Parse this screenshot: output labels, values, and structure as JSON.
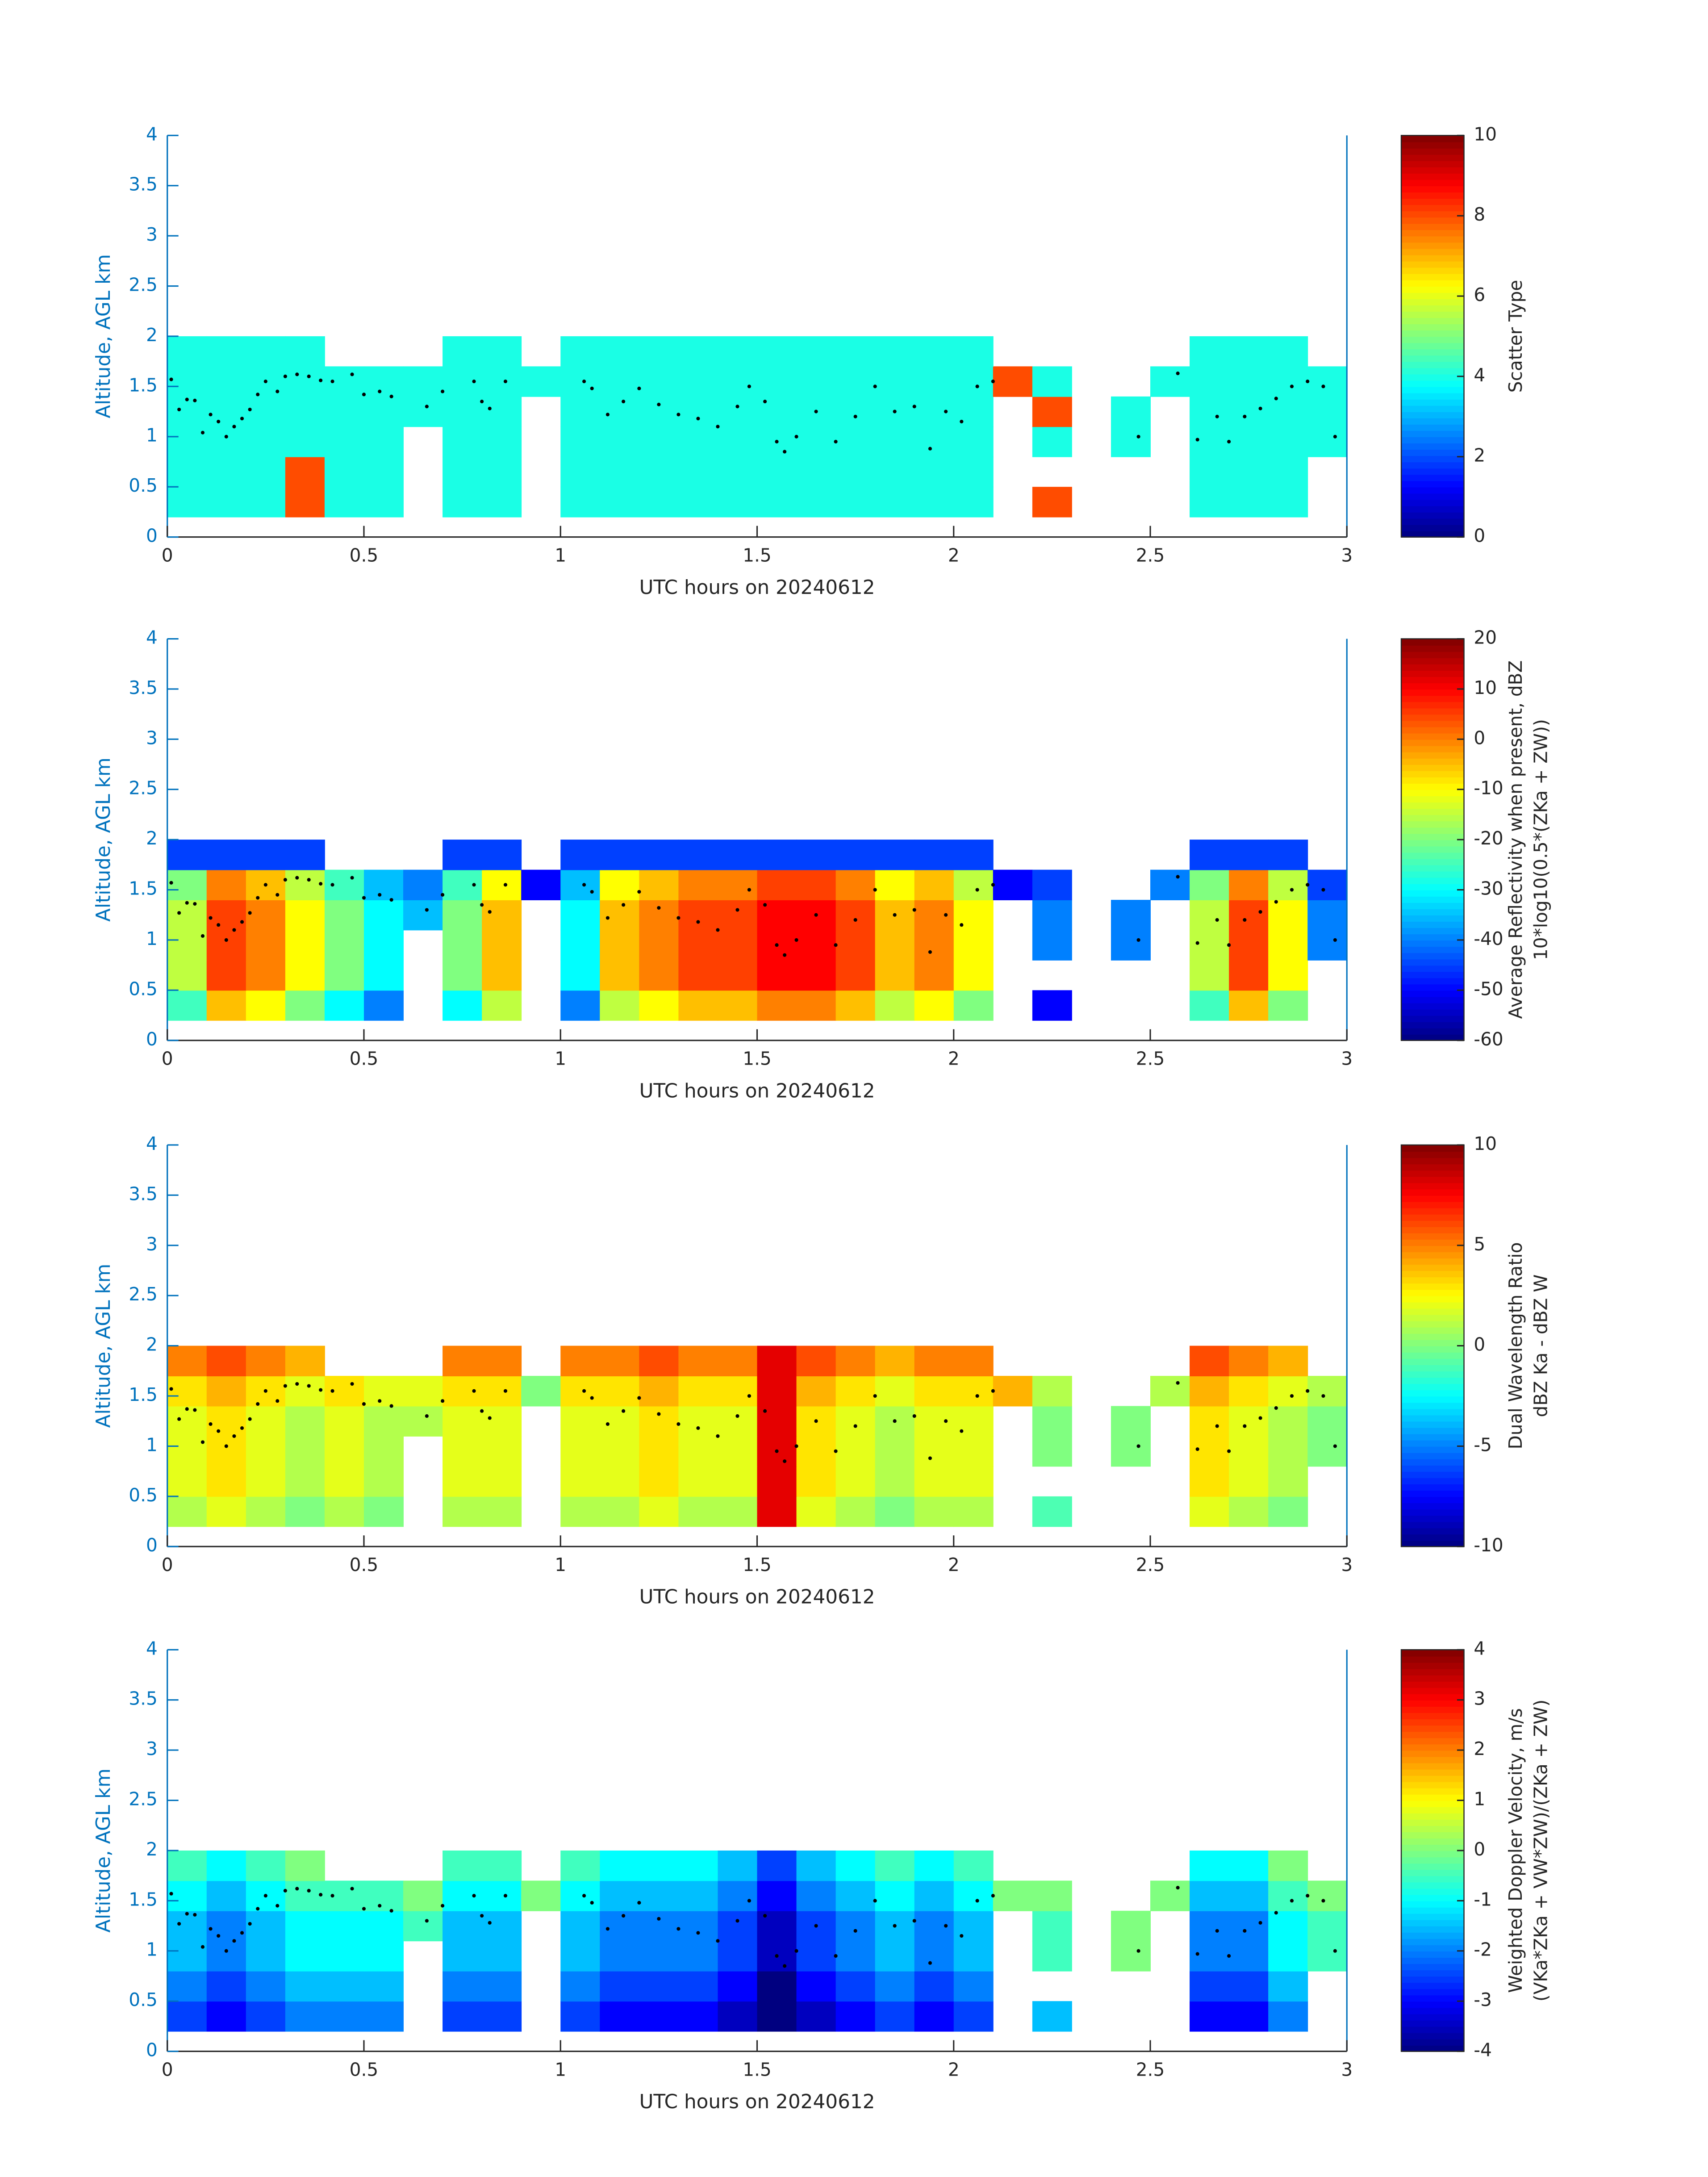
{
  "chart_data": [
    {
      "type": "heatmap",
      "xlabel": "UTC hours on 20240612",
      "ylabel": "Altitude, AGL km",
      "colorbar_label": [
        "Scatter Type"
      ],
      "xlim": [
        0,
        3
      ],
      "xticks": [
        0,
        0.5,
        1,
        1.5,
        2,
        2.5,
        3
      ],
      "ylim": [
        0,
        4
      ],
      "yticks": [
        0,
        0.5,
        1,
        1.5,
        2,
        2.5,
        3,
        3.5,
        4
      ],
      "colormap": "jet",
      "clim": [
        0,
        10
      ],
      "cticks": [
        0,
        2,
        4,
        6,
        8,
        10
      ],
      "xbins": [
        0,
        0.1,
        0.2,
        0.3,
        0.4,
        0.5,
        0.6,
        0.7,
        0.8,
        0.9,
        1,
        1.1,
        1.2,
        1.3,
        1.4,
        1.5,
        1.6,
        1.7,
        1.8,
        1.9,
        2,
        2.1,
        2.2,
        2.3,
        2.4,
        2.5,
        2.6,
        2.7,
        2.8,
        2.9,
        3
      ],
      "ybins": [
        0.2,
        0.5,
        0.8,
        1.1,
        1.4,
        1.7,
        2.0
      ],
      "z": [
        [
          4,
          4,
          4,
          8,
          4,
          4,
          null,
          4,
          4,
          null,
          4,
          4,
          4,
          4,
          4,
          4,
          4,
          4,
          4,
          4,
          4,
          null,
          8,
          null,
          null,
          null,
          4,
          4,
          4,
          null
        ],
        [
          4,
          4,
          4,
          8,
          4,
          4,
          null,
          4,
          4,
          null,
          4,
          4,
          4,
          4,
          4,
          4,
          4,
          4,
          4,
          4,
          4,
          null,
          null,
          null,
          null,
          null,
          4,
          4,
          4,
          null
        ],
        [
          4,
          4,
          4,
          4,
          4,
          4,
          null,
          4,
          4,
          null,
          4,
          4,
          4,
          4,
          4,
          4,
          4,
          4,
          4,
          4,
          4,
          null,
          4,
          null,
          4,
          null,
          4,
          4,
          4,
          4
        ],
        [
          4,
          4,
          4,
          4,
          4,
          4,
          4,
          4,
          4,
          null,
          4,
          4,
          4,
          4,
          4,
          4,
          4,
          4,
          4,
          4,
          4,
          null,
          8,
          null,
          4,
          null,
          4,
          4,
          4,
          4
        ],
        [
          4,
          4,
          4,
          4,
          4,
          4,
          4,
          4,
          4,
          4,
          4,
          4,
          4,
          4,
          4,
          4,
          4,
          4,
          4,
          4,
          4,
          8,
          4,
          null,
          null,
          4,
          4,
          4,
          4,
          4
        ],
        [
          4,
          4,
          4,
          4,
          null,
          null,
          null,
          4,
          4,
          null,
          4,
          4,
          4,
          4,
          4,
          4,
          4,
          4,
          4,
          4,
          4,
          null,
          null,
          null,
          null,
          null,
          4,
          4,
          4,
          null
        ]
      ],
      "dots": {
        "x": [
          0.01,
          0.03,
          0.05,
          0.07,
          0.09,
          0.11,
          0.13,
          0.15,
          0.17,
          0.19,
          0.21,
          0.23,
          0.25,
          0.28,
          0.3,
          0.33,
          0.36,
          0.39,
          0.42,
          0.47,
          0.5,
          0.54,
          0.57,
          0.66,
          0.7,
          0.78,
          0.8,
          0.82,
          0.86,
          1.06,
          1.08,
          1.12,
          1.16,
          1.2,
          1.25,
          1.3,
          1.35,
          1.4,
          1.45,
          1.48,
          1.52,
          1.55,
          1.57,
          1.6,
          1.65,
          1.7,
          1.75,
          1.8,
          1.85,
          1.9,
          1.94,
          1.98,
          2.02,
          2.06,
          2.1,
          2.47,
          2.57,
          2.62,
          2.67,
          2.7,
          2.74,
          2.78,
          2.82,
          2.86,
          2.9,
          2.94,
          2.97
        ],
        "y": [
          1.57,
          1.27,
          1.37,
          1.36,
          1.04,
          1.22,
          1.15,
          1.0,
          1.1,
          1.18,
          1.27,
          1.42,
          1.55,
          1.45,
          1.6,
          1.62,
          1.6,
          1.56,
          1.55,
          1.62,
          1.42,
          1.45,
          1.4,
          1.3,
          1.45,
          1.55,
          1.35,
          1.28,
          1.55,
          1.55,
          1.48,
          1.22,
          1.35,
          1.48,
          1.32,
          1.22,
          1.18,
          1.1,
          1.3,
          1.5,
          1.35,
          0.95,
          0.85,
          1.0,
          1.25,
          0.95,
          1.2,
          1.5,
          1.25,
          1.3,
          0.88,
          1.25,
          1.15,
          1.5,
          1.55,
          1.0,
          1.63,
          0.97,
          1.2,
          0.95,
          1.2,
          1.28,
          1.38,
          1.5,
          1.55,
          1.5,
          1.0
        ]
      }
    },
    {
      "type": "heatmap",
      "xlabel": "UTC hours on 20240612",
      "ylabel": "Altitude, AGL km",
      "colorbar_label": [
        "Average Reflectivity when present, dBZ",
        "10*log10(0.5*(ZKa + ZW))"
      ],
      "xlim": [
        0,
        3
      ],
      "xticks": [
        0,
        0.5,
        1,
        1.5,
        2,
        2.5,
        3
      ],
      "ylim": [
        0,
        4
      ],
      "yticks": [
        0,
        0.5,
        1,
        1.5,
        2,
        2.5,
        3,
        3.5,
        4
      ],
      "colormap": "jet",
      "clim": [
        -60,
        20
      ],
      "cticks": [
        -60,
        -50,
        -40,
        -30,
        -20,
        -10,
        0,
        10,
        20
      ],
      "xbins": [
        0,
        0.1,
        0.2,
        0.3,
        0.4,
        0.5,
        0.6,
        0.7,
        0.8,
        0.9,
        1,
        1.1,
        1.2,
        1.3,
        1.4,
        1.5,
        1.6,
        1.7,
        1.8,
        1.9,
        2,
        2.1,
        2.2,
        2.3,
        2.4,
        2.5,
        2.6,
        2.7,
        2.8,
        2.9,
        3
      ],
      "ybins": [
        0.2,
        0.5,
        0.8,
        1.1,
        1.4,
        1.7,
        2.0
      ],
      "z": [
        [
          -25,
          -5,
          -10,
          -20,
          -30,
          -40,
          null,
          -30,
          -15,
          null,
          -40,
          -15,
          -10,
          -5,
          -5,
          0,
          0,
          -5,
          -15,
          -10,
          -20,
          null,
          -50,
          null,
          null,
          null,
          -25,
          -5,
          -20,
          null
        ],
        [
          -15,
          5,
          0,
          -10,
          -20,
          -30,
          null,
          -20,
          -5,
          null,
          -30,
          -5,
          0,
          5,
          5,
          10,
          10,
          5,
          -5,
          0,
          -10,
          null,
          null,
          null,
          null,
          null,
          -15,
          5,
          -10,
          null
        ],
        [
          -15,
          5,
          0,
          -10,
          -20,
          -30,
          null,
          -20,
          -5,
          null,
          -30,
          -5,
          0,
          5,
          5,
          10,
          10,
          5,
          -5,
          0,
          -10,
          null,
          -40,
          null,
          -40,
          null,
          -15,
          5,
          -10,
          -40
        ],
        [
          -15,
          5,
          0,
          -10,
          -20,
          -30,
          -35,
          -20,
          -5,
          null,
          -30,
          -5,
          0,
          5,
          5,
          10,
          10,
          5,
          -5,
          0,
          -10,
          null,
          -40,
          null,
          -40,
          null,
          -15,
          5,
          -10,
          -40
        ],
        [
          -20,
          0,
          -5,
          -15,
          -25,
          -35,
          -40,
          -25,
          -10,
          -50,
          -35,
          -10,
          -5,
          0,
          0,
          5,
          5,
          0,
          -10,
          -5,
          -15,
          -50,
          -45,
          null,
          null,
          -40,
          -20,
          0,
          -15,
          -45
        ],
        [
          -45,
          -45,
          -45,
          -45,
          null,
          null,
          null,
          -45,
          -45,
          null,
          -45,
          -45,
          -45,
          -45,
          -45,
          -45,
          -45,
          -45,
          -45,
          -45,
          -45,
          null,
          null,
          null,
          null,
          null,
          -45,
          -45,
          -45,
          null
        ]
      ]
    },
    {
      "type": "heatmap",
      "xlabel": "UTC hours on 20240612",
      "ylabel": "Altitude, AGL km",
      "colorbar_label": [
        "Dual Wavelength Ratio",
        "dBZ Ka - dBZ W"
      ],
      "xlim": [
        0,
        3
      ],
      "xticks": [
        0,
        0.5,
        1,
        1.5,
        2,
        2.5,
        3
      ],
      "ylim": [
        0,
        4
      ],
      "yticks": [
        0,
        0.5,
        1,
        1.5,
        2,
        2.5,
        3,
        3.5,
        4
      ],
      "colormap": "jet",
      "clim": [
        -10,
        10
      ],
      "cticks": [
        -10,
        -5,
        0,
        5,
        10
      ],
      "xbins": [
        0,
        0.1,
        0.2,
        0.3,
        0.4,
        0.5,
        0.6,
        0.7,
        0.8,
        0.9,
        1,
        1.1,
        1.2,
        1.3,
        1.4,
        1.5,
        1.6,
        1.7,
        1.8,
        1.9,
        2,
        2.1,
        2.2,
        2.3,
        2.4,
        2.5,
        2.6,
        2.7,
        2.8,
        2.9,
        3
      ],
      "ybins": [
        0.2,
        0.5,
        0.8,
        1.1,
        1.4,
        1.7,
        2.0
      ],
      "z": [
        [
          1,
          2,
          1,
          0,
          1,
          0,
          null,
          1,
          1,
          null,
          1,
          1,
          2,
          1,
          1,
          8,
          2,
          1,
          0,
          1,
          1,
          null,
          -1,
          null,
          null,
          null,
          2,
          1,
          0,
          null
        ],
        [
          2,
          3,
          2,
          1,
          2,
          1,
          null,
          2,
          2,
          null,
          2,
          2,
          3,
          2,
          2,
          8,
          3,
          2,
          1,
          2,
          2,
          null,
          null,
          null,
          null,
          null,
          3,
          2,
          1,
          null
        ],
        [
          2,
          3,
          2,
          1,
          2,
          1,
          null,
          2,
          2,
          null,
          2,
          2,
          3,
          2,
          2,
          8,
          3,
          2,
          1,
          2,
          2,
          null,
          0,
          null,
          0,
          null,
          3,
          2,
          1,
          0
        ],
        [
          2,
          3,
          2,
          1,
          2,
          1,
          1,
          2,
          2,
          null,
          2,
          2,
          3,
          2,
          2,
          8,
          3,
          2,
          1,
          2,
          2,
          null,
          0,
          null,
          0,
          null,
          3,
          2,
          1,
          0
        ],
        [
          3,
          4,
          3,
          2,
          3,
          2,
          2,
          3,
          3,
          0,
          3,
          3,
          4,
          3,
          3,
          8,
          4,
          3,
          2,
          3,
          3,
          4,
          1,
          null,
          null,
          1,
          4,
          3,
          2,
          1
        ],
        [
          5,
          6,
          5,
          4,
          null,
          null,
          null,
          5,
          5,
          null,
          5,
          5,
          6,
          5,
          5,
          8,
          6,
          5,
          4,
          5,
          5,
          null,
          null,
          null,
          null,
          null,
          6,
          5,
          4,
          null
        ]
      ]
    },
    {
      "type": "heatmap",
      "xlabel": "UTC hours on 20240612",
      "ylabel": "Altitude, AGL km",
      "colorbar_label": [
        "Weighted Doppler Velocity, m/s",
        "(VKa*ZKa + VW*ZW)/(ZKa + ZW)"
      ],
      "xlim": [
        0,
        3
      ],
      "xticks": [
        0,
        0.5,
        1,
        1.5,
        2,
        2.5,
        3
      ],
      "ylim": [
        0,
        4
      ],
      "yticks": [
        0,
        0.5,
        1,
        1.5,
        2,
        2.5,
        3,
        3.5,
        4
      ],
      "colormap": "jet",
      "clim": [
        -4,
        4
      ],
      "cticks": [
        -4,
        -3,
        -2,
        -1,
        0,
        1,
        2,
        3,
        4
      ],
      "xbins": [
        0,
        0.1,
        0.2,
        0.3,
        0.4,
        0.5,
        0.6,
        0.7,
        0.8,
        0.9,
        1,
        1.1,
        1.2,
        1.3,
        1.4,
        1.5,
        1.6,
        1.7,
        1.8,
        1.9,
        2,
        2.1,
        2.2,
        2.3,
        2.4,
        2.5,
        2.6,
        2.7,
        2.8,
        2.9,
        3
      ],
      "ybins": [
        0.2,
        0.5,
        0.8,
        1.1,
        1.4,
        1.7,
        2.0
      ],
      "z": [
        [
          -2.5,
          -3,
          -2.5,
          -2,
          -2,
          -2,
          null,
          -2.5,
          -2.5,
          null,
          -2.5,
          -3,
          -3,
          -3,
          -3.5,
          -4,
          -3.5,
          -3,
          -2.5,
          -3,
          -2.5,
          null,
          -1.5,
          null,
          null,
          null,
          -3,
          -3,
          -2,
          null
        ],
        [
          -2,
          -2.5,
          -2,
          -1.5,
          -1.5,
          -1.5,
          null,
          -2,
          -2,
          null,
          -2,
          -2.5,
          -2.5,
          -2.5,
          -3,
          -4,
          -3,
          -2.5,
          -2,
          -2.5,
          -2,
          null,
          null,
          null,
          null,
          null,
          -2.5,
          -2.5,
          -1.5,
          null
        ],
        [
          -1.5,
          -2,
          -1.5,
          -1,
          -1,
          -1,
          null,
          -1.5,
          -1.5,
          null,
          -1.5,
          -2,
          -2,
          -2,
          -2.5,
          -3.5,
          -2.5,
          -2,
          -1.5,
          -2,
          -1.5,
          null,
          -0.5,
          null,
          0,
          null,
          -2,
          -2,
          -1,
          -0.5
        ],
        [
          -1.5,
          -2,
          -1.5,
          -1,
          -1,
          -1,
          -0.5,
          -1.5,
          -1.5,
          null,
          -1.5,
          -2,
          -2,
          -2,
          -2.5,
          -3.5,
          -2.5,
          -2,
          -1.5,
          -2,
          -1.5,
          null,
          -0.5,
          null,
          0,
          null,
          -2,
          -2,
          -1,
          -0.5
        ],
        [
          -1,
          -1.5,
          -1,
          -0.5,
          -0.5,
          -0.5,
          0,
          -1,
          -1,
          0,
          -1,
          -1.5,
          -1.5,
          -1.5,
          -2,
          -3,
          -2,
          -1.5,
          -1,
          -1.5,
          -1,
          0,
          0,
          null,
          null,
          0,
          -1.5,
          -1.5,
          -0.5,
          0
        ],
        [
          -0.5,
          -1,
          -0.5,
          0,
          null,
          null,
          null,
          -0.5,
          -0.5,
          null,
          -0.5,
          -1,
          -1,
          -1,
          -1.5,
          -2.5,
          -1.5,
          -1,
          -0.5,
          -1,
          -0.5,
          null,
          null,
          null,
          null,
          null,
          -1,
          -1,
          0,
          null
        ]
      ]
    }
  ]
}
